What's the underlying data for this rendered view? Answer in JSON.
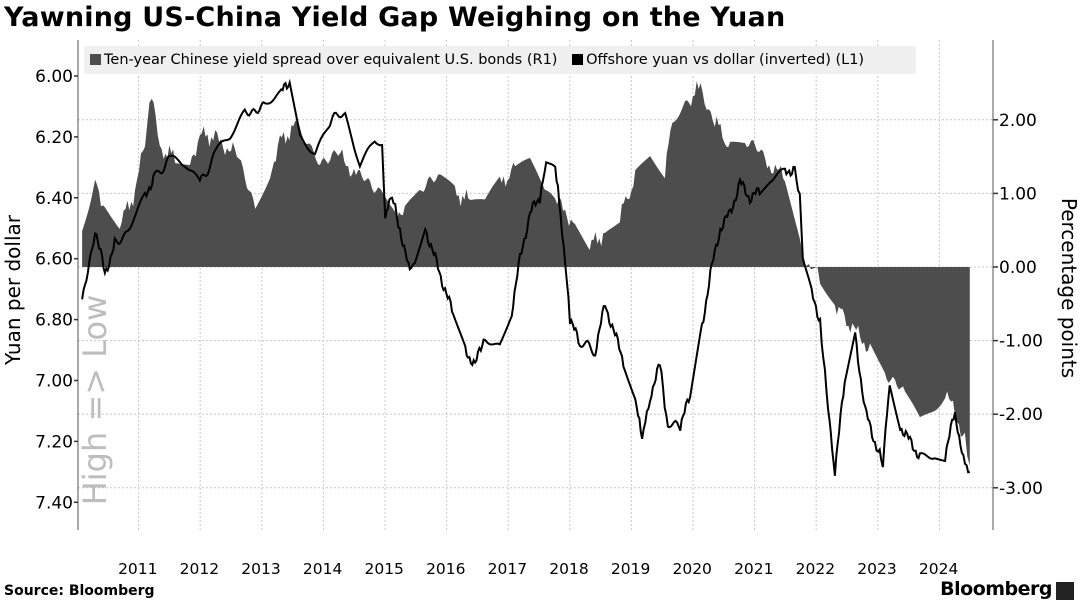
{
  "title": "Yawning US-China Yield Gap Weighing on the Yuan",
  "source": "Source: Bloomberg",
  "logo": "Bloomberg",
  "colors": {
    "spread": "#4d4d4d",
    "yuan": "#000000",
    "grid": "#c8c8c8",
    "watermark": "#bdbdbd"
  },
  "chart_data": {
    "type": "area+line",
    "title": "Yawning US-China Yield Gap Weighing on the Yuan",
    "legend_position": "top-left",
    "xlabel": "",
    "x_ticks": [
      "2011",
      "2012",
      "2013",
      "2014",
      "2015",
      "2016",
      "2017",
      "2018",
      "2019",
      "2020",
      "2021",
      "2022",
      "2023",
      "2024"
    ],
    "xlim": [
      2010.5,
      2025.1
    ],
    "left_axis": {
      "label": "Yuan per dollar",
      "watermark": "High => Low",
      "inverted": true,
      "ylim": [
        6.0,
        7.5
      ],
      "ticks": [
        "6.00",
        "6.20",
        "6.40",
        "6.60",
        "6.80",
        "7.00",
        "7.20",
        "7.40"
      ]
    },
    "right_axis": {
      "label": "Percentage points",
      "ylim": [
        -3.5,
        3.0
      ],
      "ticks": [
        "2.00",
        "1.00",
        "0.00",
        "-1.00",
        "-2.00",
        "-3.00"
      ]
    },
    "series": [
      {
        "name": "Ten-year Chinese yield spread over equivalent U.S. bonds (R1)",
        "axis": "right",
        "type": "area",
        "points": [
          [
            2010.58,
            0.5
          ],
          [
            2010.79,
            1.2
          ],
          [
            2010.95,
            0.8
          ],
          [
            2011.19,
            0.6
          ],
          [
            2011.44,
            1.0
          ],
          [
            2011.6,
            1.7
          ],
          [
            2011.71,
            2.3
          ],
          [
            2011.84,
            1.6
          ],
          [
            2012.09,
            1.5
          ],
          [
            2012.33,
            1.4
          ],
          [
            2012.49,
            1.8
          ],
          [
            2012.74,
            1.75
          ],
          [
            2013.06,
            1.55
          ],
          [
            2013.39,
            0.9
          ],
          [
            2013.63,
            1.3
          ],
          [
            2013.79,
            1.7
          ],
          [
            2014.04,
            1.9
          ],
          [
            2014.44,
            1.5
          ],
          [
            2014.77,
            1.5
          ],
          [
            2015.09,
            1.2
          ],
          [
            2015.42,
            1.1
          ],
          [
            2015.66,
            0.8
          ],
          [
            2015.82,
            0.7
          ],
          [
            2016.06,
            1.0
          ],
          [
            2016.39,
            1.2
          ],
          [
            2016.63,
            1.0
          ],
          [
            2016.88,
            0.9
          ],
          [
            2017.12,
            0.8
          ],
          [
            2017.36,
            1.1
          ],
          [
            2017.61,
            1.35
          ],
          [
            2017.85,
            1.4
          ],
          [
            2018.09,
            1.0
          ],
          [
            2018.26,
            0.9
          ],
          [
            2018.58,
            0.6
          ],
          [
            2018.82,
            0.3
          ],
          [
            2019.07,
            0.45
          ],
          [
            2019.31,
            0.7
          ],
          [
            2019.56,
            1.2
          ],
          [
            2019.8,
            1.5
          ],
          [
            2020.04,
            1.3
          ],
          [
            2020.16,
            2.0
          ],
          [
            2020.37,
            2.2
          ],
          [
            2020.62,
            2.45
          ],
          [
            2020.85,
            2.0
          ],
          [
            2021.1,
            1.6
          ],
          [
            2021.34,
            1.7
          ],
          [
            2021.67,
            1.45
          ],
          [
            2021.99,
            1.2
          ],
          [
            2022.23,
            0.3
          ],
          [
            2022.31,
            0.0
          ],
          [
            2022.48,
            0.1
          ],
          [
            2022.56,
            -0.2
          ],
          [
            2022.8,
            -0.5
          ],
          [
            2023.05,
            -0.8
          ],
          [
            2023.37,
            -1.1
          ],
          [
            2023.61,
            -1.4
          ],
          [
            2023.94,
            -1.8
          ],
          [
            2024.18,
            -2.1
          ],
          [
            2024.42,
            -1.9
          ],
          [
            2024.59,
            -1.7
          ],
          [
            2024.75,
            -2.0
          ],
          [
            2024.91,
            -2.3
          ],
          [
            2024.99,
            -2.7
          ]
        ]
      },
      {
        "name": "Offshore yuan vs dollar (inverted) (L1)",
        "axis": "left",
        "type": "line",
        "points": [
          [
            2010.58,
            6.75
          ],
          [
            2010.79,
            6.5
          ],
          [
            2010.95,
            6.65
          ],
          [
            2011.11,
            6.55
          ],
          [
            2011.36,
            6.5
          ],
          [
            2011.6,
            6.4
          ],
          [
            2011.76,
            6.32
          ],
          [
            2012.01,
            6.28
          ],
          [
            2012.25,
            6.3
          ],
          [
            2012.49,
            6.36
          ],
          [
            2012.74,
            6.25
          ],
          [
            2012.98,
            6.2
          ],
          [
            2013.22,
            6.12
          ],
          [
            2013.55,
            6.09
          ],
          [
            2013.79,
            6.06
          ],
          [
            2013.95,
            6.02
          ],
          [
            2014.12,
            6.2
          ],
          [
            2014.36,
            6.25
          ],
          [
            2014.6,
            6.15
          ],
          [
            2014.85,
            6.12
          ],
          [
            2015.09,
            6.28
          ],
          [
            2015.33,
            6.2
          ],
          [
            2015.45,
            6.21
          ],
          [
            2015.5,
            6.45
          ],
          [
            2015.61,
            6.4
          ],
          [
            2015.74,
            6.5
          ],
          [
            2015.9,
            6.65
          ],
          [
            2015.98,
            6.6
          ],
          [
            2016.15,
            6.5
          ],
          [
            2016.31,
            6.6
          ],
          [
            2016.47,
            6.7
          ],
          [
            2016.63,
            6.8
          ],
          [
            2016.8,
            6.9
          ],
          [
            2016.96,
            6.95
          ],
          [
            2017.12,
            6.85
          ],
          [
            2017.36,
            6.88
          ],
          [
            2017.53,
            6.8
          ],
          [
            2017.69,
            6.6
          ],
          [
            2017.85,
            6.45
          ],
          [
            2018.01,
            6.4
          ],
          [
            2018.14,
            6.27
          ],
          [
            2018.26,
            6.3
          ],
          [
            2018.37,
            6.5
          ],
          [
            2018.5,
            6.8
          ],
          [
            2018.66,
            6.88
          ],
          [
            2018.91,
            6.9
          ],
          [
            2019.07,
            6.75
          ],
          [
            2019.23,
            6.85
          ],
          [
            2019.39,
            6.95
          ],
          [
            2019.56,
            7.05
          ],
          [
            2019.67,
            7.2
          ],
          [
            2019.8,
            7.05
          ],
          [
            2019.96,
            6.95
          ],
          [
            2020.09,
            7.15
          ],
          [
            2020.29,
            7.15
          ],
          [
            2020.45,
            7.05
          ],
          [
            2020.62,
            6.85
          ],
          [
            2020.78,
            6.65
          ],
          [
            2020.94,
            6.5
          ],
          [
            2021.1,
            6.45
          ],
          [
            2021.26,
            6.35
          ],
          [
            2021.42,
            6.4
          ],
          [
            2021.58,
            6.38
          ],
          [
            2021.75,
            6.35
          ],
          [
            2021.99,
            6.32
          ],
          [
            2022.15,
            6.3
          ],
          [
            2022.23,
            6.4
          ],
          [
            2022.28,
            6.6
          ],
          [
            2022.4,
            6.7
          ],
          [
            2022.56,
            6.8
          ],
          [
            2022.69,
            7.1
          ],
          [
            2022.8,
            7.3
          ],
          [
            2022.96,
            7.0
          ],
          [
            2023.13,
            6.85
          ],
          [
            2023.29,
            7.1
          ],
          [
            2023.45,
            7.2
          ],
          [
            2023.58,
            7.28
          ],
          [
            2023.69,
            7.0
          ],
          [
            2023.86,
            7.15
          ],
          [
            2024.02,
            7.2
          ],
          [
            2024.18,
            7.25
          ],
          [
            2024.42,
            7.25
          ],
          [
            2024.59,
            7.25
          ],
          [
            2024.75,
            7.1
          ],
          [
            2024.86,
            7.25
          ],
          [
            2024.99,
            7.3
          ]
        ]
      }
    ]
  }
}
